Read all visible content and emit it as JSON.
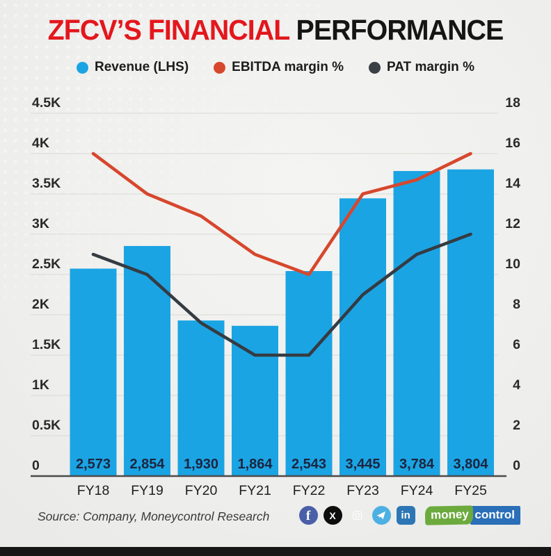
{
  "title": {
    "highlight": "ZFCV’S FINANCIAL",
    "rest": " PERFORMANCE"
  },
  "legend": [
    {
      "label": "Revenue (LHS)",
      "color": "#1ba4e3"
    },
    {
      "label": "EBITDA margin %",
      "color": "#d7472d"
    },
    {
      "label": "PAT margin %",
      "color": "#3a4046"
    }
  ],
  "chart_data": {
    "type": "bar+line",
    "categories": [
      "FY18",
      "FY19",
      "FY20",
      "FY21",
      "FY22",
      "FY23",
      "FY24",
      "FY25"
    ],
    "series": [
      {
        "name": "Revenue (LHS)",
        "type": "bar",
        "axis": "left",
        "color": "#1ba4e3",
        "values": [
          2573,
          2854,
          1930,
          1864,
          2543,
          3445,
          3784,
          3804
        ],
        "labels": [
          "2,573",
          "2,854",
          "1,930",
          "1,864",
          "2,543",
          "3,445",
          "3,784",
          "3,804"
        ]
      },
      {
        "name": "EBITDA margin %",
        "type": "line",
        "axis": "right",
        "color": "#d7472d",
        "values": [
          16.0,
          14.0,
          12.9,
          11.0,
          10.0,
          14.0,
          14.7,
          16.0
        ]
      },
      {
        "name": "PAT margin %",
        "type": "line",
        "axis": "right",
        "color": "#353b42",
        "values": [
          11.0,
          10.0,
          7.6,
          6.0,
          6.0,
          9.0,
          11.0,
          12.0
        ]
      }
    ],
    "left_axis": {
      "min": 0,
      "max": 4500,
      "ticks": [
        "0",
        "0.5K",
        "1K",
        "1.5K",
        "2K",
        "2.5K",
        "3K",
        "3.5K",
        "4K",
        "4.5K"
      ]
    },
    "right_axis": {
      "min": 0,
      "max": 18,
      "ticks": [
        "0",
        "2",
        "4",
        "6",
        "8",
        "10",
        "12",
        "14",
        "16",
        "18"
      ]
    },
    "grid": true,
    "legend_position": "top",
    "bar_label_color": "#1c2540",
    "grid_color": "#d9d9d5",
    "baseline_color": "#4b4b4b",
    "tick_color": "#2a2a2a",
    "xlabel_color": "#1f1f1f"
  },
  "footer": {
    "source": "Source: Company, Moneycontrol Research",
    "social_icons": [
      "facebook-icon",
      "x-icon",
      "instagram-icon",
      "telegram-icon",
      "linkedin-icon"
    ],
    "facebook_glyph": "f",
    "x_glyph": "X",
    "linkedin_glyph": "in",
    "logo": {
      "part1": "money",
      "part2": "control"
    }
  }
}
